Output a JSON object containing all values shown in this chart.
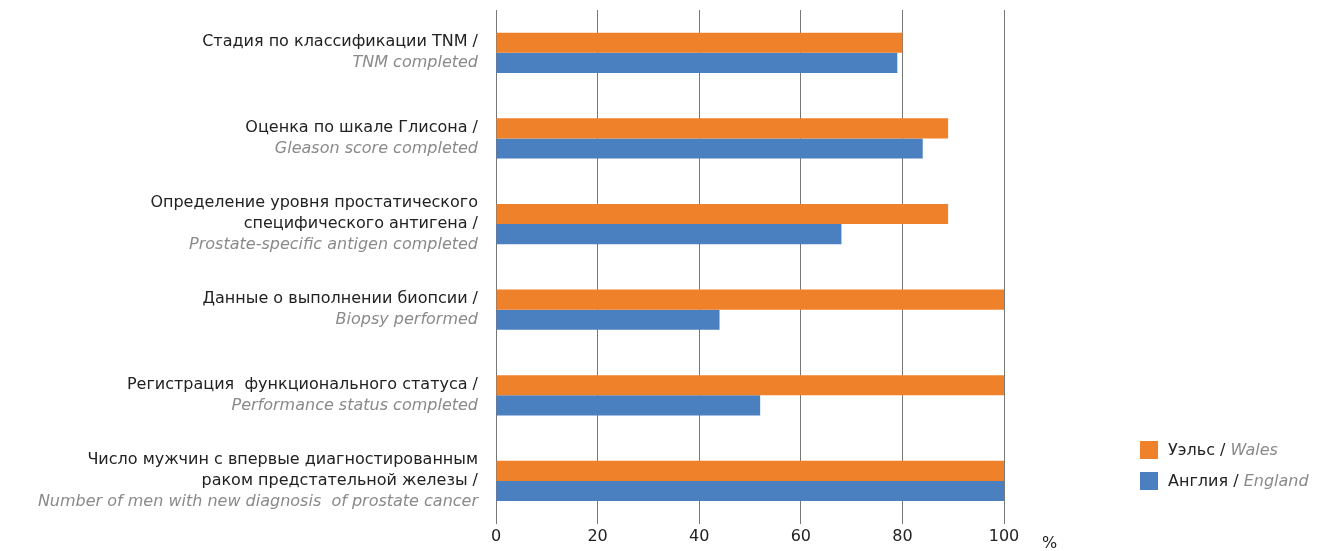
{
  "chart_data": {
    "type": "bar",
    "orientation": "horizontal",
    "xlabel": "%",
    "categories": [
      "Стадия по классификации TNM /\nTNM completed",
      "Оценка по шкале Глисона /\nGleason score completed",
      "Определение уровня простатического\nспецифического антигена /\nProstate-specific antigen completed",
      "Данные о выполнении биопсии /\nBiopsy performed",
      "Регистрация  функционального статуса /\nPerformance status completed",
      "Число мужчин с впервые диагностированным\nраком предстательной железы /\nNumber of men with new diagnosis  of prostate cancer"
    ],
    "series": [
      {
        "name": "Уэльс / Wales",
        "color": "#f0812b",
        "values": [
          80,
          89,
          89,
          100,
          100,
          100
        ]
      },
      {
        "name": "Англия / England",
        "color": "#4a7fc0",
        "values": [
          79,
          84,
          68,
          44,
          52,
          100
        ]
      }
    ],
    "xlim": [
      0,
      100
    ],
    "xticks": [
      0,
      20,
      40,
      60,
      80,
      100
    ],
    "grid": "x",
    "legend": "bottom right"
  }
}
